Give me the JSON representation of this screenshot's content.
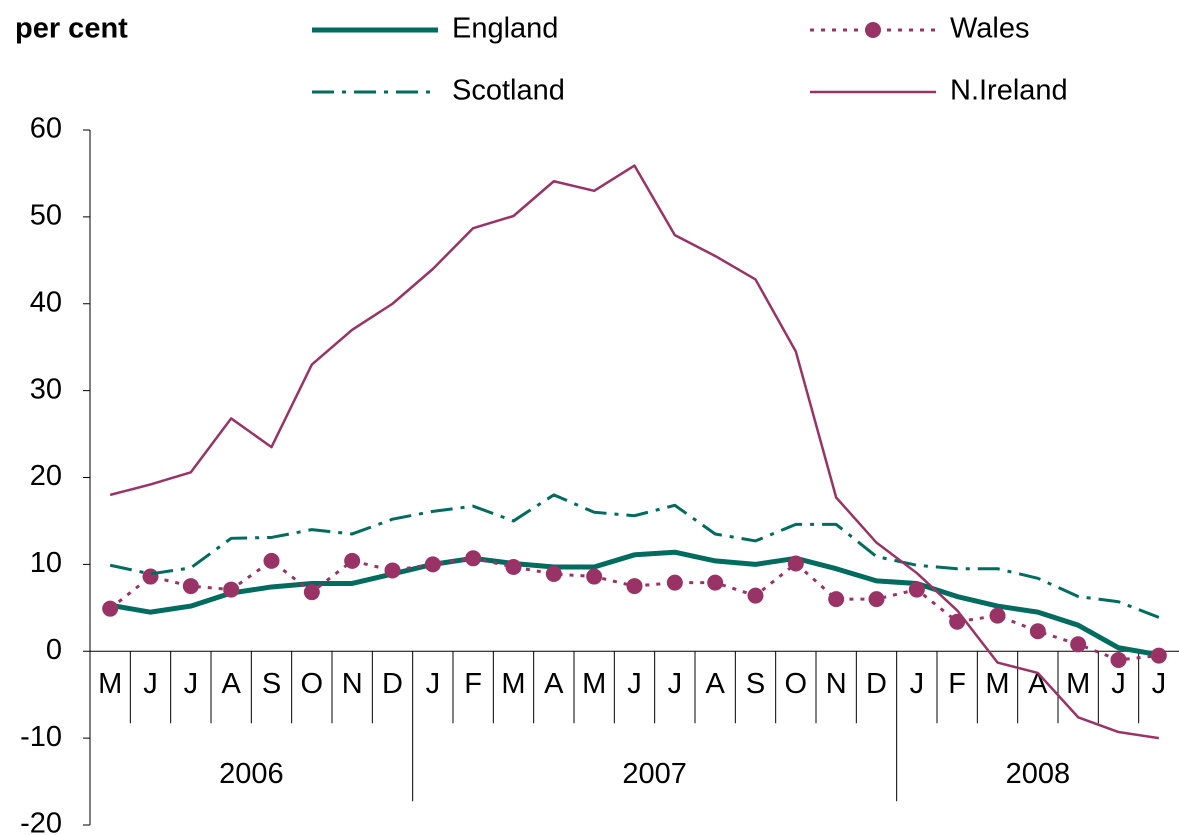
{
  "chart_data": {
    "type": "line",
    "y_label": "per cent",
    "categories": [
      "M",
      "J",
      "J",
      "A",
      "S",
      "O",
      "N",
      "D",
      "J",
      "F",
      "M",
      "A",
      "M",
      "J",
      "J",
      "A",
      "S",
      "O",
      "N",
      "D",
      "J",
      "F",
      "M",
      "A",
      "M",
      "J",
      "J"
    ],
    "years": [
      "2006",
      "2007",
      "2008"
    ],
    "ylim": [
      -20,
      60
    ],
    "yticks": [
      -20,
      -10,
      0,
      10,
      20,
      30,
      40,
      50,
      60
    ],
    "series": [
      {
        "name": "England",
        "color": "#006b5f",
        "style": "thick",
        "values": [
          5.3,
          4.5,
          5.2,
          6.7,
          7.4,
          7.8,
          7.8,
          8.9,
          10,
          10.7,
          10.1,
          9.7,
          9.7,
          11.1,
          11.4,
          10.4,
          10,
          10.7,
          9.5,
          8.1,
          7.8,
          6.3,
          5.2,
          4.5,
          3,
          0.4,
          -0.4
        ]
      },
      {
        "name": "Wales",
        "color": "#993366",
        "style": "dotted-markers",
        "values": [
          4.9,
          8.6,
          7.5,
          7.1,
          10.4,
          6.8,
          10.4,
          9.3,
          10,
          10.7,
          9.7,
          8.9,
          8.6,
          7.5,
          7.9,
          7.9,
          6.4,
          10.1,
          6,
          6,
          7.1,
          3.4,
          4.1,
          2.3,
          0.8,
          -1,
          -0.5
        ]
      },
      {
        "name": "Scotland",
        "color": "#006b5f",
        "style": "dash-dot",
        "values": [
          9.9,
          8.9,
          9.6,
          13,
          13.1,
          14,
          13.5,
          15.2,
          16.1,
          16.7,
          15,
          18,
          16,
          15.6,
          16.8,
          13.5,
          12.7,
          14.6,
          14.6,
          10.9,
          9.9,
          9.5,
          9.5,
          8.4,
          6.3,
          5.7,
          3.9
        ]
      },
      {
        "name": "N.Ireland",
        "color": "#993366",
        "style": "thin",
        "values": [
          18,
          19.2,
          20.6,
          26.8,
          23.5,
          33,
          37,
          40,
          44,
          48.7,
          50.1,
          54.1,
          53,
          55.9,
          47.9,
          45.5,
          42.8,
          34.5,
          17.7,
          12.5,
          9,
          4.7,
          -1.3,
          -2.5,
          -7.6,
          -9.3,
          -10
        ]
      }
    ]
  }
}
